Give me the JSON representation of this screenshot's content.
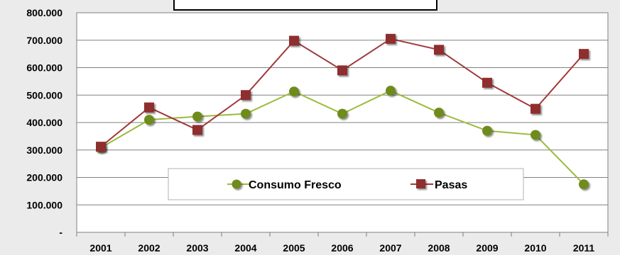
{
  "chart_data": {
    "type": "line",
    "title": "",
    "xlabel": "",
    "ylabel": "",
    "categories": [
      "2001",
      "2002",
      "2003",
      "2004",
      "2005",
      "2006",
      "2007",
      "2008",
      "2009",
      "2010",
      "2011"
    ],
    "y_ticks": [
      "-",
      "100.000",
      "200.000",
      "300.000",
      "400.000",
      "500.000",
      "600.000",
      "700.000",
      "800.000"
    ],
    "ylim": [
      0,
      800000
    ],
    "grid": true,
    "legend_position": "bottom-center (inside plot)",
    "series": [
      {
        "name": "Consumo Fresco",
        "color": "#9bbb3b",
        "marker": "circle",
        "marker_color": "#6e8b1f",
        "values": [
          308000,
          410000,
          422000,
          432000,
          513000,
          432000,
          516000,
          436000,
          370000,
          355000,
          175000
        ]
      },
      {
        "name": "Pasas",
        "color": "#a0393a",
        "marker": "square",
        "marker_color": "#8e2f2f",
        "values": [
          312000,
          455000,
          373000,
          500000,
          698000,
          590000,
          705000,
          665000,
          545000,
          450000,
          650000
        ]
      }
    ]
  }
}
